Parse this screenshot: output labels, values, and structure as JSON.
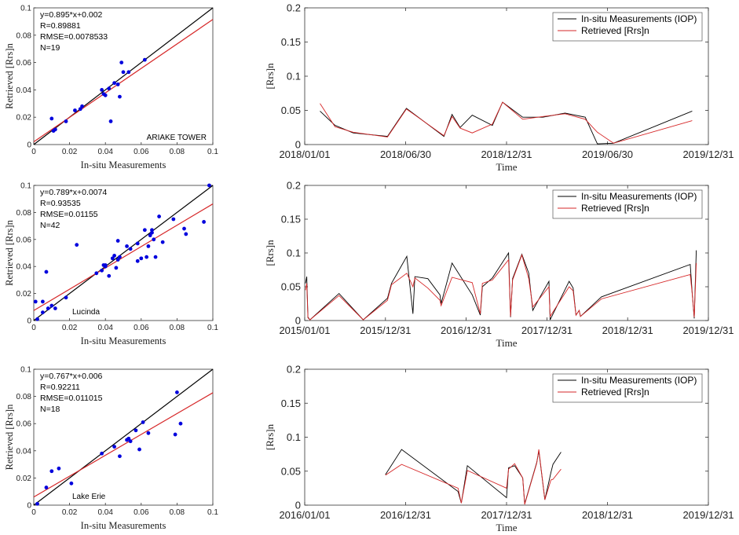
{
  "figure": {
    "colors": {
      "measured": "#000000",
      "retrieved": "#d62728",
      "points": "#0000dd",
      "one_to_one": "#000000"
    }
  },
  "chart_data": [
    {
      "type": "scatter",
      "site": "ARIAKE TOWER",
      "xlabel": "In-situ Measurements",
      "ylabel": "Retrieved [Rrs]n",
      "xlim": [
        0,
        0.1
      ],
      "ylim": [
        0,
        0.1
      ],
      "xticks": [
        "0",
        "0.02",
        "0.04",
        "0.06",
        "0.08",
        "0.1"
      ],
      "yticks": [
        "0",
        "0.02",
        "0.04",
        "0.06",
        "0.08",
        "0.1"
      ],
      "stats": [
        "y=0.895*x+0.002",
        "R=0.89881",
        "RMSE=0.0078533",
        "N=19"
      ],
      "fit": {
        "slope": 0.895,
        "intercept": 0.002
      },
      "points": [
        [
          0.01,
          0.019
        ],
        [
          0.011,
          0.01
        ],
        [
          0.012,
          0.011
        ],
        [
          0.018,
          0.017
        ],
        [
          0.023,
          0.025
        ],
        [
          0.026,
          0.026
        ],
        [
          0.027,
          0.028
        ],
        [
          0.038,
          0.04
        ],
        [
          0.039,
          0.037
        ],
        [
          0.04,
          0.036
        ],
        [
          0.042,
          0.041
        ],
        [
          0.043,
          0.017
        ],
        [
          0.045,
          0.045
        ],
        [
          0.047,
          0.044
        ],
        [
          0.048,
          0.035
        ],
        [
          0.049,
          0.06
        ],
        [
          0.05,
          0.053
        ],
        [
          0.053,
          0.053
        ],
        [
          0.062,
          0.062
        ]
      ]
    },
    {
      "type": "line",
      "site": "ARIAKE TOWER",
      "xlabel": "Time",
      "ylabel": "[Rrs]n",
      "ylim": [
        0,
        0.2
      ],
      "yticks": [
        "0",
        "0.05",
        "0.1",
        "0.15",
        "0.2"
      ],
      "xticks": [
        "2018/01/01",
        "2018/06/30",
        "2018/12/31",
        "2019/06/30",
        "2019/12/31"
      ],
      "xtick_positions": [
        0,
        0.25,
        0.5,
        0.75,
        1.0
      ],
      "legend": [
        "In-situ Measurements (IOP)",
        "Retrieved [Rrs]n"
      ],
      "series": [
        {
          "name": "In-situ Measurements (IOP)",
          "x": [
            0.038,
            0.075,
            0.12,
            0.205,
            0.252,
            0.345,
            0.365,
            0.385,
            0.415,
            0.465,
            0.49,
            0.54,
            0.59,
            0.645,
            0.695,
            0.725,
            0.765,
            0.96
          ],
          "y": [
            0.049,
            0.028,
            0.017,
            0.012,
            0.053,
            0.012,
            0.044,
            0.025,
            0.043,
            0.028,
            0.062,
            0.04,
            0.04,
            0.046,
            0.04,
            0.001,
            0.002,
            0.049
          ]
        },
        {
          "name": "Retrieved [Rrs]n",
          "x": [
            0.038,
            0.075,
            0.12,
            0.205,
            0.252,
            0.345,
            0.365,
            0.385,
            0.415,
            0.465,
            0.49,
            0.54,
            0.59,
            0.645,
            0.695,
            0.725,
            0.765,
            0.96
          ],
          "y": [
            0.06,
            0.026,
            0.018,
            0.011,
            0.052,
            0.013,
            0.041,
            0.024,
            0.017,
            0.03,
            0.062,
            0.037,
            0.041,
            0.045,
            0.037,
            0.018,
            0.002,
            0.035
          ]
        }
      ]
    },
    {
      "type": "scatter",
      "site": "Lucinda",
      "xlabel": "In-situ Measurements",
      "ylabel": "Retrieved [Rrs]n",
      "xlim": [
        0,
        0.1
      ],
      "ylim": [
        0,
        0.1
      ],
      "xticks": [
        "0",
        "0.02",
        "0.04",
        "0.06",
        "0.08",
        "0.1"
      ],
      "yticks": [
        "0",
        "0.02",
        "0.04",
        "0.06",
        "0.08",
        "0.1"
      ],
      "stats": [
        "y=0.789*x+0.0074",
        "R=0.93535",
        "RMSE=0.01155",
        "N=42"
      ],
      "fit": {
        "slope": 0.789,
        "intercept": 0.0074
      },
      "points": [
        [
          0.001,
          0.014
        ],
        [
          0.002,
          0.001
        ],
        [
          0.005,
          0.006
        ],
        [
          0.005,
          0.014
        ],
        [
          0.007,
          0.036
        ],
        [
          0.008,
          0.009
        ],
        [
          0.01,
          0.011
        ],
        [
          0.012,
          0.009
        ],
        [
          0.018,
          0.017
        ],
        [
          0.024,
          0.056
        ],
        [
          0.035,
          0.035
        ],
        [
          0.038,
          0.037
        ],
        [
          0.039,
          0.041
        ],
        [
          0.04,
          0.041
        ],
        [
          0.042,
          0.033
        ],
        [
          0.044,
          0.046
        ],
        [
          0.045,
          0.048
        ],
        [
          0.046,
          0.039
        ],
        [
          0.047,
          0.059
        ],
        [
          0.048,
          0.047
        ],
        [
          0.052,
          0.055
        ],
        [
          0.058,
          0.044
        ],
        [
          0.06,
          0.046
        ],
        [
          0.062,
          0.067
        ],
        [
          0.063,
          0.047
        ],
        [
          0.064,
          0.055
        ],
        [
          0.065,
          0.063
        ],
        [
          0.066,
          0.065
        ],
        [
          0.067,
          0.06
        ],
        [
          0.068,
          0.047
        ],
        [
          0.07,
          0.077
        ],
        [
          0.072,
          0.058
        ],
        [
          0.078,
          0.075
        ],
        [
          0.084,
          0.068
        ],
        [
          0.085,
          0.064
        ],
        [
          0.095,
          0.073
        ],
        [
          0.098,
          0.1
        ],
        [
          0.047,
          0.045
        ],
        [
          0.066,
          0.067
        ],
        [
          0.058,
          0.057
        ],
        [
          0.04,
          0.04
        ],
        [
          0.054,
          0.053
        ]
      ]
    },
    {
      "type": "line",
      "site": "Lucinda",
      "xlabel": "Time",
      "ylabel": "[Rrs]n",
      "ylim": [
        0,
        0.2
      ],
      "yticks": [
        "0",
        "0.05",
        "0.1",
        "0.15",
        "0.2"
      ],
      "xticks": [
        "2015/01/01",
        "2015/12/31",
        "2016/12/31",
        "2017/12/31",
        "2018/12/31",
        "2019/12/31"
      ],
      "xtick_positions": [
        0,
        0.2,
        0.4,
        0.6,
        0.8,
        1.0
      ],
      "legend": [
        "In-situ Measurements (IOP)",
        "Retrieved [Rrs]n"
      ],
      "series": [
        {
          "name": "In-situ Measurements (IOP)",
          "x": [
            0.002,
            0.005,
            0.008,
            0.013,
            0.085,
            0.145,
            0.205,
            0.215,
            0.253,
            0.268,
            0.273,
            0.305,
            0.335,
            0.338,
            0.365,
            0.415,
            0.435,
            0.44,
            0.465,
            0.505,
            0.51,
            0.515,
            0.538,
            0.555,
            0.565,
            0.585,
            0.605,
            0.608,
            0.655,
            0.665,
            0.672,
            0.68,
            0.683,
            0.735,
            0.955,
            0.96,
            0.965,
            0.97
          ],
          "y": [
            0.055,
            0.065,
            0.005,
            0.001,
            0.04,
            0.001,
            0.033,
            0.055,
            0.095,
            0.01,
            0.065,
            0.062,
            0.038,
            0.025,
            0.085,
            0.038,
            0.008,
            0.05,
            0.063,
            0.1,
            0.005,
            0.062,
            0.098,
            0.07,
            0.015,
            0.037,
            0.058,
            0.001,
            0.058,
            0.048,
            0.008,
            0.015,
            0.006,
            0.035,
            0.083,
            0.041,
            0.003,
            0.104
          ]
        },
        {
          "name": "Retrieved [Rrs]n",
          "x": [
            0.002,
            0.005,
            0.008,
            0.013,
            0.085,
            0.145,
            0.205,
            0.215,
            0.253,
            0.268,
            0.273,
            0.305,
            0.335,
            0.338,
            0.365,
            0.415,
            0.435,
            0.44,
            0.465,
            0.505,
            0.51,
            0.515,
            0.538,
            0.555,
            0.565,
            0.585,
            0.605,
            0.608,
            0.655,
            0.665,
            0.672,
            0.68,
            0.683,
            0.735,
            0.955,
            0.96,
            0.965,
            0.97
          ],
          "y": [
            0.045,
            0.055,
            0.004,
            0.001,
            0.037,
            0.001,
            0.03,
            0.053,
            0.07,
            0.05,
            0.063,
            0.048,
            0.03,
            0.022,
            0.064,
            0.056,
            0.01,
            0.055,
            0.06,
            0.09,
            0.006,
            0.06,
            0.097,
            0.062,
            0.02,
            0.035,
            0.05,
            0.006,
            0.05,
            0.044,
            0.008,
            0.015,
            0.006,
            0.032,
            0.068,
            0.04,
            0.005,
            0.085
          ]
        }
      ]
    },
    {
      "type": "scatter",
      "site": "Lake Erie",
      "xlabel": "In-situ Measurements",
      "ylabel": "Retrieved [Rrs]n",
      "xlim": [
        0,
        0.1
      ],
      "ylim": [
        0,
        0.1
      ],
      "xticks": [
        "0",
        "0.02",
        "0.04",
        "0.06",
        "0.08",
        "0.1"
      ],
      "yticks": [
        "0",
        "0.02",
        "0.04",
        "0.06",
        "0.08",
        "0.1"
      ],
      "stats": [
        "y=0.767*x+0.006",
        "R=0.92211",
        "RMSE=0.011015",
        "N=18"
      ],
      "fit": {
        "slope": 0.767,
        "intercept": 0.006
      },
      "points": [
        [
          0.002,
          0.001
        ],
        [
          0.007,
          0.013
        ],
        [
          0.01,
          0.025
        ],
        [
          0.014,
          0.027
        ],
        [
          0.021,
          0.016
        ],
        [
          0.038,
          0.038
        ],
        [
          0.045,
          0.043
        ],
        [
          0.048,
          0.036
        ],
        [
          0.052,
          0.048
        ],
        [
          0.053,
          0.049
        ],
        [
          0.054,
          0.047
        ],
        [
          0.057,
          0.055
        ],
        [
          0.059,
          0.041
        ],
        [
          0.061,
          0.061
        ],
        [
          0.064,
          0.053
        ],
        [
          0.079,
          0.052
        ],
        [
          0.08,
          0.083
        ],
        [
          0.082,
          0.06
        ]
      ]
    },
    {
      "type": "line",
      "site": "Lake Erie",
      "xlabel": "Time",
      "ylabel": "[Rrs]n",
      "ylim": [
        0,
        0.2
      ],
      "yticks": [
        "0",
        "0.05",
        "0.1",
        "0.15",
        "0.2"
      ],
      "xticks": [
        "2016/01/01",
        "2016/12/31",
        "2017/12/31",
        "2018/12/31",
        "2019/12/31"
      ],
      "xtick_positions": [
        0,
        0.25,
        0.5,
        0.75,
        1.0
      ],
      "legend": [
        "In-situ Measurements (IOP)",
        "Retrieved [Rrs]n"
      ],
      "series": [
        {
          "name": "In-situ Measurements (IOP)",
          "x": [
            0.2,
            0.24,
            0.38,
            0.388,
            0.403,
            0.5,
            0.505,
            0.52,
            0.54,
            0.545,
            0.575,
            0.58,
            0.595,
            0.61,
            0.615,
            0.635
          ],
          "y": [
            0.045,
            0.082,
            0.02,
            0.003,
            0.058,
            0.011,
            0.055,
            0.058,
            0.04,
            0.002,
            0.063,
            0.08,
            0.008,
            0.048,
            0.06,
            0.078
          ]
        },
        {
          "name": "Retrieved [Rrs]n",
          "x": [
            0.2,
            0.24,
            0.38,
            0.388,
            0.403,
            0.5,
            0.505,
            0.52,
            0.54,
            0.545,
            0.575,
            0.58,
            0.595,
            0.61,
            0.615,
            0.635
          ],
          "y": [
            0.044,
            0.06,
            0.025,
            0.003,
            0.051,
            0.025,
            0.053,
            0.061,
            0.04,
            0.001,
            0.062,
            0.082,
            0.008,
            0.037,
            0.038,
            0.053
          ]
        }
      ]
    }
  ]
}
